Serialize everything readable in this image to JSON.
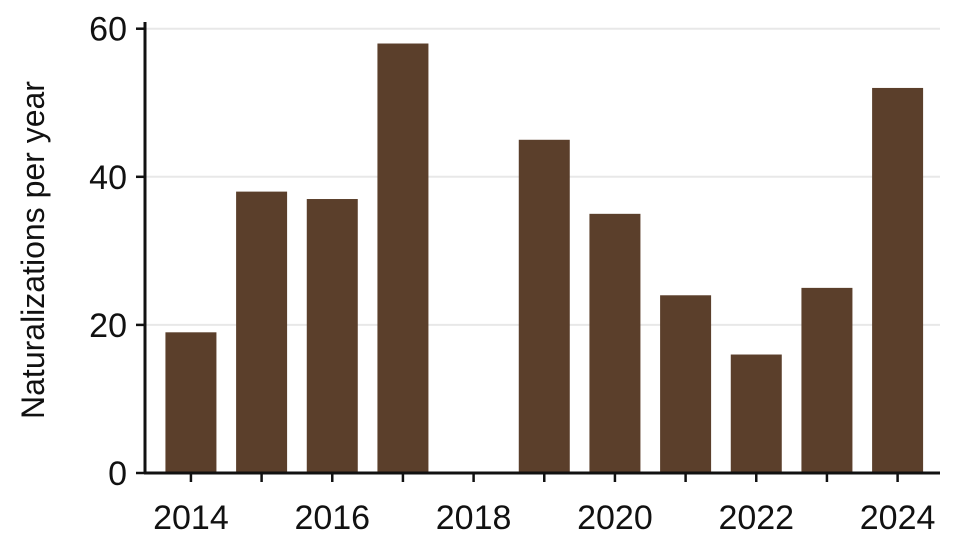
{
  "chart_data": {
    "type": "bar",
    "title": "",
    "xlabel": "",
    "ylabel": "Naturalizations per year",
    "categories": [
      2014,
      2015,
      2016,
      2017,
      2018,
      2019,
      2020,
      2021,
      2022,
      2023,
      2024
    ],
    "values": [
      19,
      38,
      37,
      58,
      0,
      45,
      35,
      24,
      16,
      25,
      52
    ],
    "xlim": [
      2013.35,
      2024.6
    ],
    "ylim": [
      0,
      60.5
    ],
    "xticks": [
      2014,
      2016,
      2018,
      2020,
      2022,
      2024
    ],
    "xtick_labels": [
      "2014",
      "2016",
      "2018",
      "2020",
      "2022",
      "2024"
    ],
    "yticks": [
      0,
      20,
      40,
      60
    ],
    "ytick_labels": [
      "0",
      "20",
      "40",
      "60"
    ],
    "grid": "horizontal",
    "legend": "none"
  },
  "colors": {
    "bar": "#5b3f2b",
    "grid": "#e8e8e8",
    "axis": "#111111"
  }
}
